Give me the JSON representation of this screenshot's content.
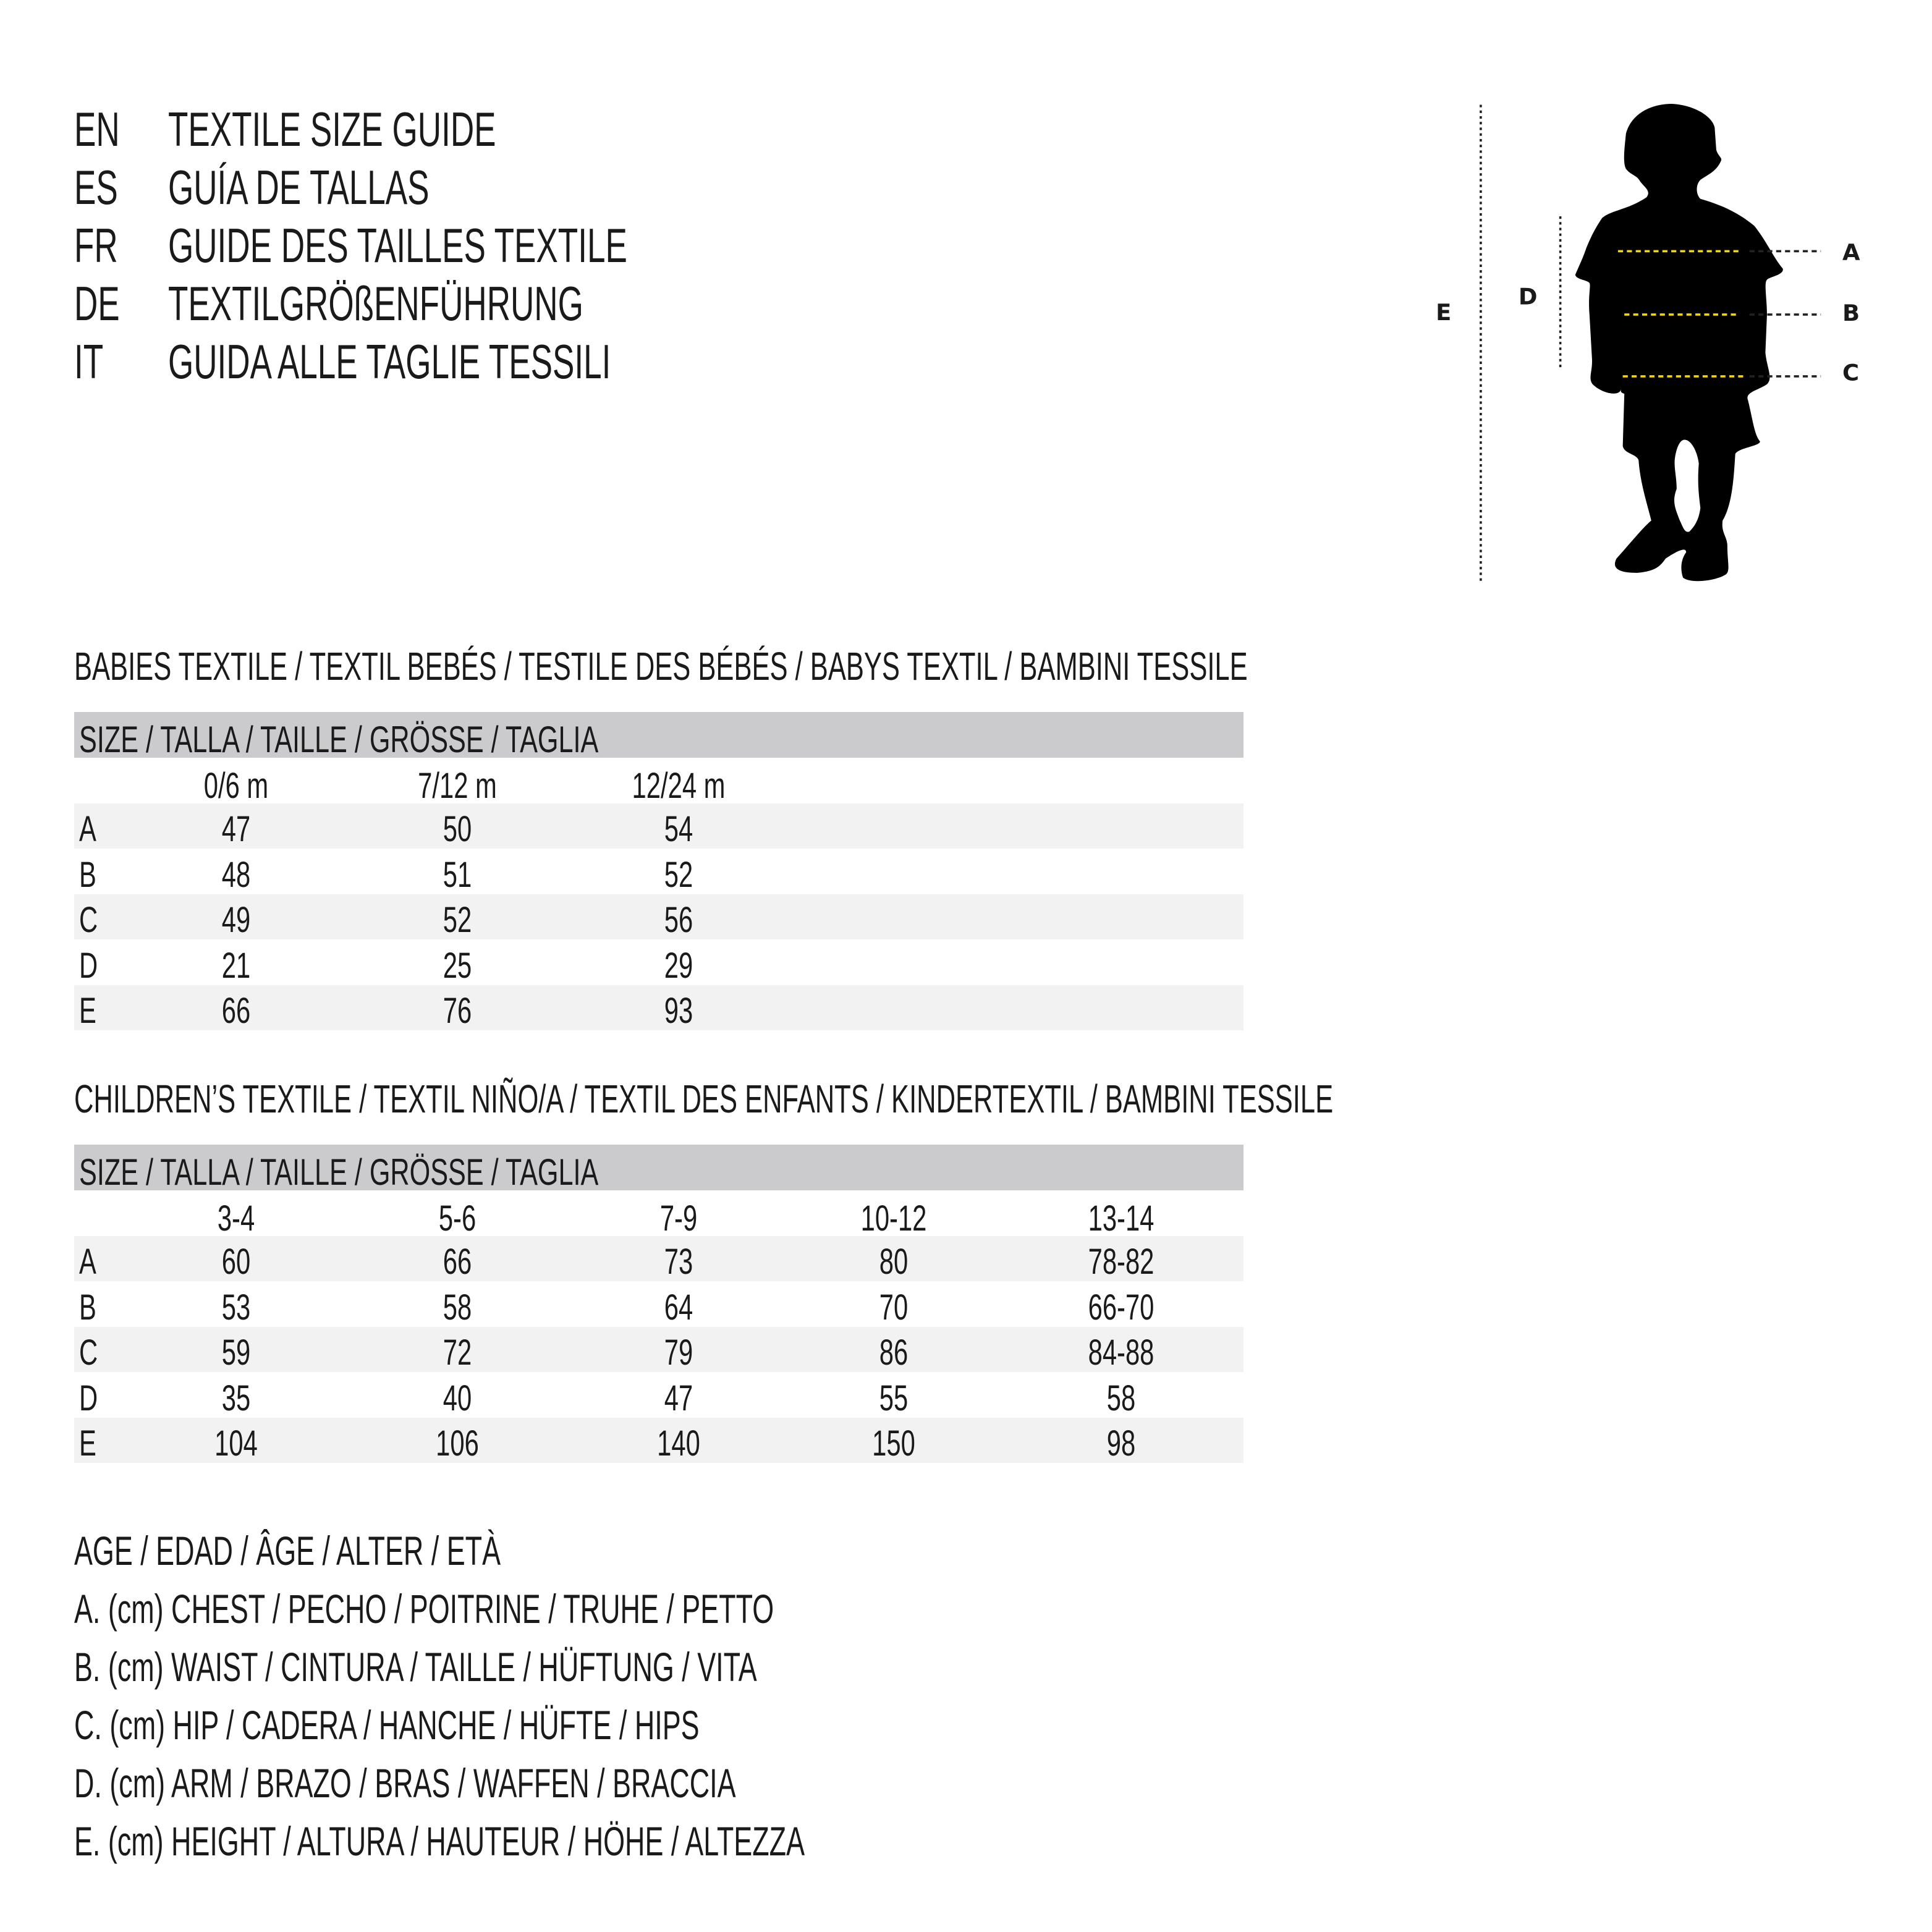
{
  "header": [
    {
      "code": "EN",
      "title": "TEXTILE SIZE GUIDE"
    },
    {
      "code": "ES",
      "title": "GUÍA DE TALLAS"
    },
    {
      "code": "FR",
      "title": "GUIDE DES TAILLES TEXTILE"
    },
    {
      "code": "DE",
      "title": "TEXTILGRÖßENFÜHRUNG"
    },
    {
      "code": "IT",
      "title": "GUIDA ALLE TAGLIE TESSILI"
    }
  ],
  "figure": {
    "labels": {
      "A": "A",
      "B": "B",
      "C": "C",
      "D": "D",
      "E": "E"
    },
    "silhouette_color": "#000000",
    "measure_line_color": "#f5d800"
  },
  "babies": {
    "heading": "BABIES TEXTILE / TEXTIL BEBÉS / TESTILE DES BÉBÉS / BABYS TEXTIL / BAMBINI TESSILE",
    "size_label": "SIZE / TALLA / TAILLE / GRÖSSE / TAGLIA",
    "columns": [
      "0/6 m",
      "7/12 m",
      "12/24 m"
    ],
    "rows": [
      {
        "label": "A",
        "values": [
          "47",
          "50",
          "54"
        ]
      },
      {
        "label": "B",
        "values": [
          "48",
          "51",
          "52"
        ]
      },
      {
        "label": "C",
        "values": [
          "49",
          "52",
          "56"
        ]
      },
      {
        "label": "D",
        "values": [
          "21",
          "25",
          "29"
        ]
      },
      {
        "label": "E",
        "values": [
          "66",
          "76",
          "93"
        ]
      }
    ]
  },
  "children": {
    "heading": "CHILDREN’S TEXTILE / TEXTIL NIÑO/A / TEXTIL DES ENFANTS / KINDERTEXTIL / BAMBINI TESSILE",
    "size_label": "SIZE / TALLA / TAILLE / GRÖSSE / TAGLIA",
    "columns": [
      "3-4",
      "5-6",
      "7-9",
      "10-12",
      "13-14"
    ],
    "rows": [
      {
        "label": "A",
        "values": [
          "60",
          "66",
          "73",
          "80",
          "78-82"
        ]
      },
      {
        "label": "B",
        "values": [
          "53",
          "58",
          "64",
          "70",
          "66-70"
        ]
      },
      {
        "label": "C",
        "values": [
          "59",
          "72",
          "79",
          "86",
          "84-88"
        ]
      },
      {
        "label": "D",
        "values": [
          "35",
          "40",
          "47",
          "55",
          "58"
        ]
      },
      {
        "label": "E",
        "values": [
          "104",
          "106",
          "140",
          "150",
          "98"
        ]
      }
    ]
  },
  "legend": [
    "AGE / EDAD / ÂGE / ALTER / ETÀ",
    "A. (cm) CHEST / PECHO / POITRINE / TRUHE / PETTO",
    "B. (cm) WAIST / CINTURA / TAILLE / HÜFTUNG / VITA",
    "C. (cm) HIP / CADERA / HANCHE / HÜFTE / HIPS",
    "D. (cm) ARM / BRAZO / BRAS / WAFFEN / BRACCIA",
    "E. (cm) HEIGHT / ALTURA / HAUTEUR / HÖHE / ALTEZZA"
  ]
}
